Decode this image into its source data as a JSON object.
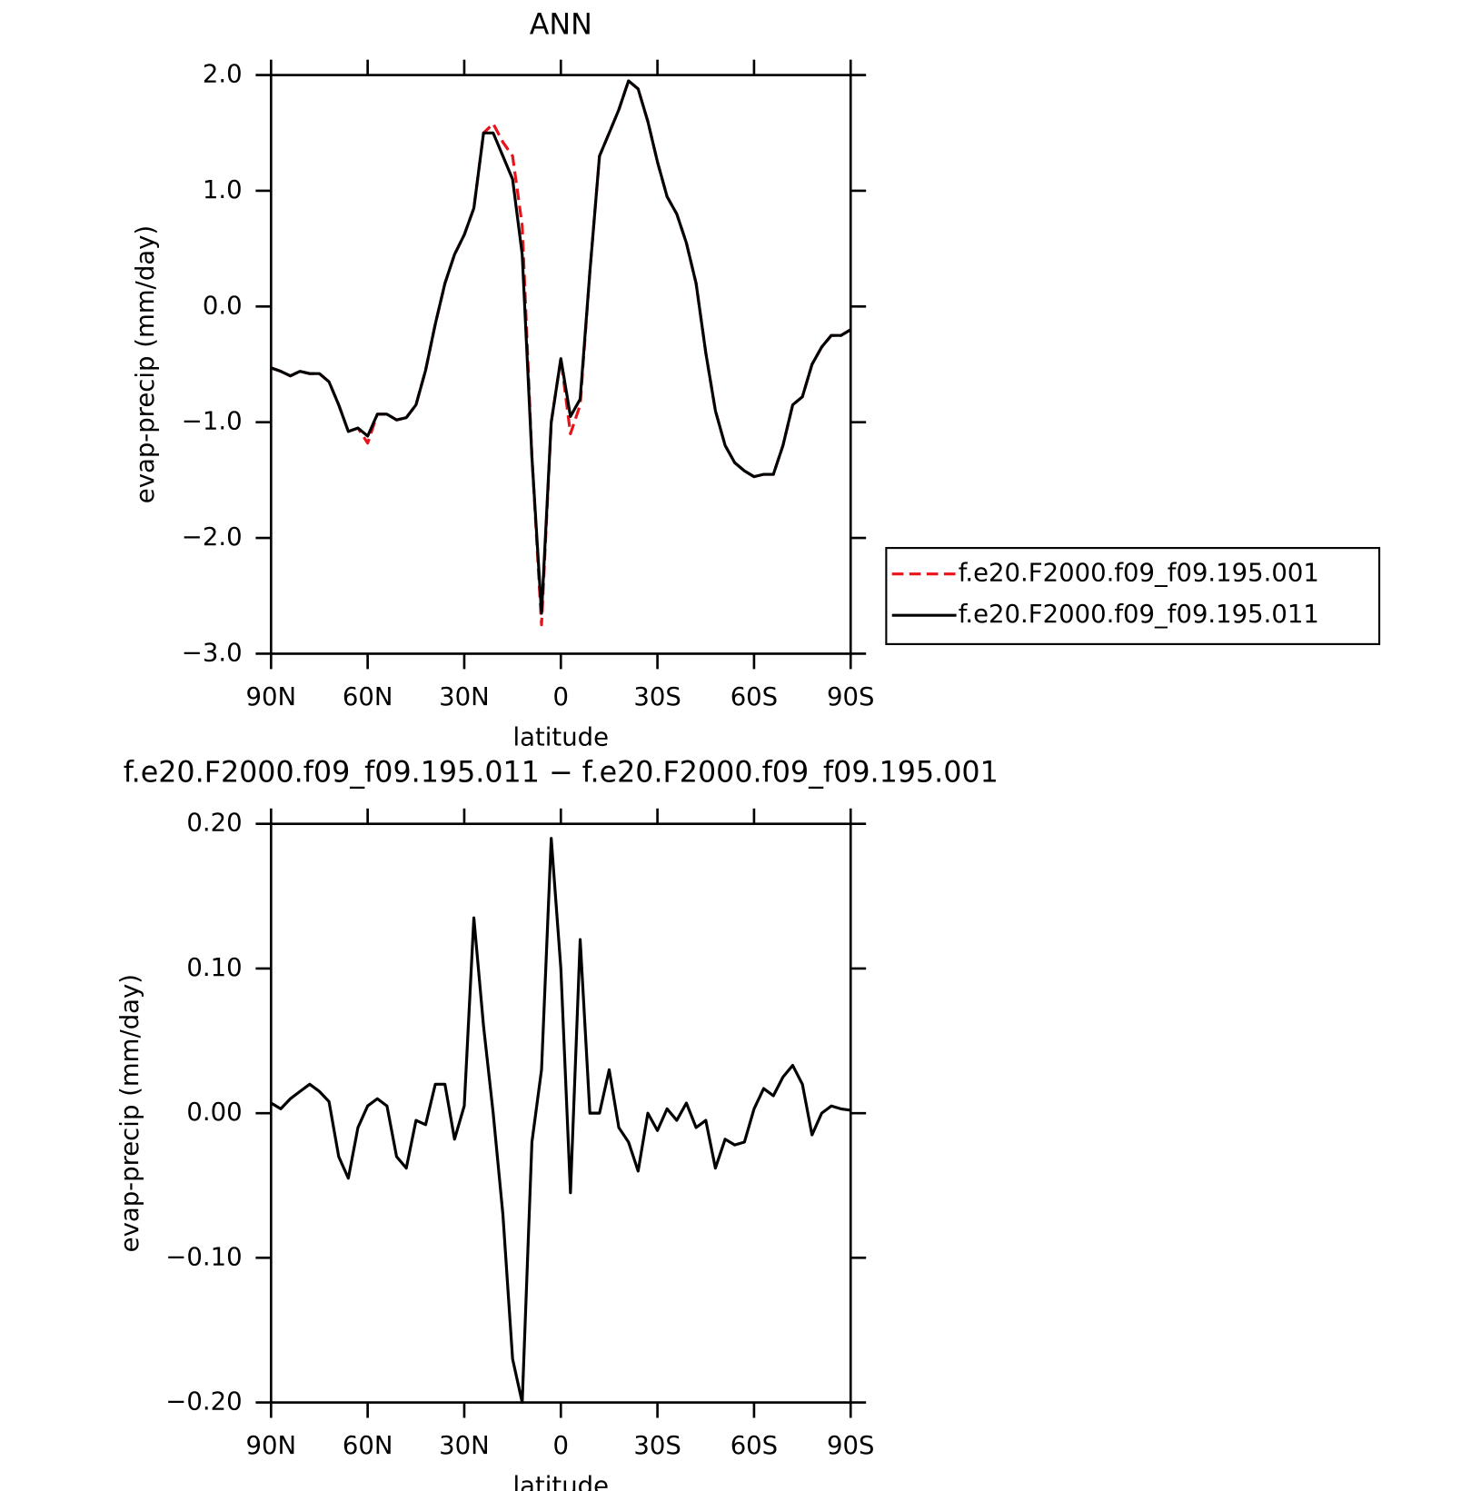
{
  "chart_data": [
    {
      "type": "line",
      "title": "ANN",
      "xlabel": "latitude",
      "ylabel": "evap-precip (mm/day)",
      "x": [
        90,
        87,
        84,
        81,
        78,
        75,
        72,
        69,
        66,
        63,
        60,
        57,
        54,
        51,
        48,
        45,
        42,
        39,
        36,
        33,
        30,
        27,
        24,
        21,
        18,
        15,
        12,
        9,
        6,
        3,
        0,
        -3,
        -6,
        -9,
        -12,
        -15,
        -18,
        -21,
        -24,
        -27,
        -30,
        -33,
        -36,
        -39,
        -42,
        -45,
        -48,
        -51,
        -54,
        -57,
        -60,
        -63,
        -66,
        -69,
        -72,
        -75,
        -78,
        -81,
        -84,
        -87,
        -90
      ],
      "xlim": [
        90,
        -90
      ],
      "xticks": [
        {
          "value": 90,
          "label": "90N"
        },
        {
          "value": 60,
          "label": "60N"
        },
        {
          "value": 30,
          "label": "30N"
        },
        0,
        {
          "value": -30,
          "label": "30S"
        },
        {
          "value": -60,
          "label": "60S"
        },
        {
          "value": -90,
          "label": "90S"
        }
      ],
      "ylim": [
        -3,
        2
      ],
      "yticks": [
        {
          "value": -3,
          "label": "−3.0"
        },
        {
          "value": -2,
          "label": "−2.0"
        },
        {
          "value": -1,
          "label": "−1.0"
        },
        {
          "value": 0,
          "label": "0.0"
        },
        {
          "value": 1,
          "label": "1.0"
        },
        {
          "value": 2,
          "label": "2.0"
        }
      ],
      "legend": "right",
      "series": [
        {
          "name": "f.e20.F2000.f09_f09.195.001",
          "color": "#e8141a",
          "dash": "dashed",
          "values": [
            -0.53,
            -0.56,
            -0.6,
            -0.56,
            -0.58,
            -0.58,
            -0.65,
            -0.85,
            -1.08,
            -1.05,
            -1.18,
            -0.93,
            -0.93,
            -0.98,
            -0.96,
            -0.85,
            -0.55,
            -0.15,
            0.2,
            0.45,
            0.62,
            0.85,
            1.5,
            1.58,
            1.42,
            1.3,
            0.7,
            -1.3,
            -2.75,
            -1.0,
            -0.45,
            -1.1,
            -0.85,
            0.3,
            1.3,
            1.5,
            1.7,
            1.95,
            1.88,
            1.6,
            1.25,
            0.95,
            0.8,
            0.55,
            0.2,
            -0.4,
            -0.9,
            -1.2,
            -1.35,
            -1.42,
            -1.47,
            -1.45,
            -1.45,
            -1.2,
            -0.85,
            -0.78,
            -0.5,
            -0.35,
            -0.25,
            -0.25,
            -0.2
          ]
        },
        {
          "name": "f.e20.F2000.f09_f09.195.011",
          "color": "#000000",
          "dash": "solid",
          "values": [
            -0.53,
            -0.56,
            -0.6,
            -0.56,
            -0.58,
            -0.58,
            -0.65,
            -0.85,
            -1.08,
            -1.05,
            -1.12,
            -0.93,
            -0.93,
            -0.98,
            -0.96,
            -0.85,
            -0.55,
            -0.15,
            0.2,
            0.45,
            0.62,
            0.85,
            1.5,
            1.5,
            1.3,
            1.1,
            0.45,
            -1.3,
            -2.65,
            -1.0,
            -0.45,
            -0.95,
            -0.8,
            0.3,
            1.3,
            1.5,
            1.7,
            1.95,
            1.88,
            1.6,
            1.25,
            0.95,
            0.8,
            0.55,
            0.2,
            -0.4,
            -0.9,
            -1.2,
            -1.35,
            -1.42,
            -1.47,
            -1.45,
            -1.45,
            -1.2,
            -0.85,
            -0.78,
            -0.5,
            -0.35,
            -0.25,
            -0.25,
            -0.2
          ]
        }
      ]
    },
    {
      "type": "line",
      "title": "f.e20.F2000.f09_f09.195.011 − f.e20.F2000.f09_f09.195.001",
      "xlabel": "latitude",
      "ylabel": "evap-precip (mm/day)",
      "x": [
        90,
        87,
        84,
        81,
        78,
        75,
        72,
        69,
        66,
        63,
        60,
        57,
        54,
        51,
        48,
        45,
        42,
        39,
        36,
        33,
        30,
        27,
        24,
        21,
        18,
        15,
        12,
        9,
        6,
        3,
        0,
        -3,
        -6,
        -9,
        -12,
        -15,
        -18,
        -21,
        -24,
        -27,
        -30,
        -33,
        -36,
        -39,
        -42,
        -45,
        -48,
        -51,
        -54,
        -57,
        -60,
        -63,
        -66,
        -69,
        -72,
        -75,
        -78,
        -81,
        -84,
        -87,
        -90
      ],
      "xlim": [
        90,
        -90
      ],
      "xticks": [
        {
          "value": 90,
          "label": "90N"
        },
        {
          "value": 60,
          "label": "60N"
        },
        {
          "value": 30,
          "label": "30N"
        },
        0,
        {
          "value": -30,
          "label": "30S"
        },
        {
          "value": -60,
          "label": "60S"
        },
        {
          "value": -90,
          "label": "90S"
        }
      ],
      "ylim": [
        -0.2,
        0.2
      ],
      "yticks": [
        {
          "value": -0.2,
          "label": "−0.20"
        },
        {
          "value": -0.1,
          "label": "−0.10"
        },
        {
          "value": 0,
          "label": "0.00"
        },
        {
          "value": 0.1,
          "label": "0.10"
        },
        {
          "value": 0.2,
          "label": "0.20"
        }
      ],
      "series": [
        {
          "color": "#000000",
          "dash": "solid",
          "values": [
            0.007,
            0.003,
            0.01,
            0.015,
            0.02,
            0.015,
            0.008,
            -0.03,
            -0.045,
            -0.01,
            0.005,
            0.01,
            0.005,
            -0.03,
            -0.038,
            -0.005,
            -0.008,
            0.02,
            0.02,
            -0.018,
            0.005,
            0.135,
            0.06,
            0.0,
            -0.07,
            -0.17,
            -0.2,
            -0.02,
            0.03,
            0.19,
            0.1,
            -0.055,
            0.12,
            0.0,
            0.0,
            0.03,
            -0.01,
            -0.02,
            -0.04,
            0.0,
            -0.012,
            0.003,
            -0.005,
            0.007,
            -0.01,
            -0.005,
            -0.038,
            -0.018,
            -0.022,
            -0.02,
            0.003,
            0.017,
            0.012,
            0.025,
            0.033,
            0.02,
            -0.015,
            0.0,
            0.005,
            0.003,
            0.002
          ]
        }
      ]
    }
  ]
}
